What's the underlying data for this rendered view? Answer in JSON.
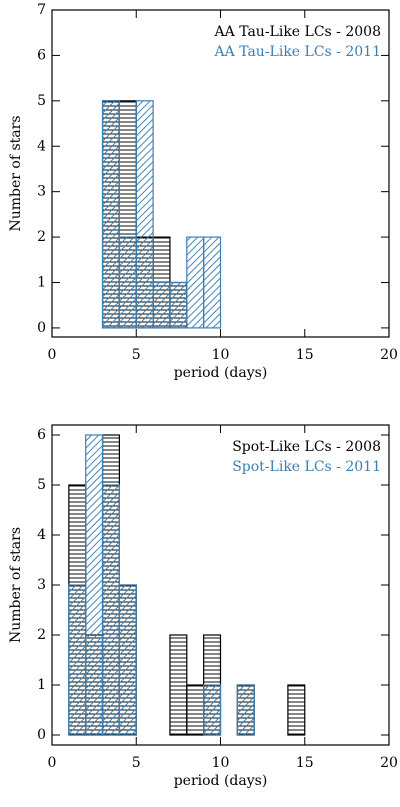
{
  "chart_data": [
    {
      "type": "histogram",
      "xlabel": "period (days)",
      "ylabel": "Number of stars",
      "bins": [
        0,
        1,
        2,
        3,
        4,
        5,
        6,
        7,
        8,
        9,
        10,
        11,
        12,
        13,
        14,
        15,
        16,
        17,
        18,
        19,
        20
      ],
      "series": [
        {
          "name": "AA Tau-Like LCs - 2008",
          "color": "#000000",
          "hatch": "horizontal",
          "values": [
            0,
            0,
            0,
            5,
            5,
            2,
            2,
            1,
            0,
            0,
            0,
            0,
            0,
            0,
            0,
            0,
            0,
            0,
            0,
            0
          ]
        },
        {
          "name": "AA Tau-Like LCs - 2011",
          "color": "#3a7fb5",
          "hatch": "diagonal",
          "values": [
            0,
            0,
            0,
            5,
            2,
            5,
            1,
            1,
            2,
            2,
            0,
            0,
            0,
            0,
            0,
            0,
            0,
            0,
            0,
            0
          ]
        }
      ],
      "xlim": [
        0,
        20
      ],
      "xticks": [
        0,
        5,
        10,
        15,
        20
      ],
      "ylim": [
        -0.2,
        7
      ],
      "yticks": [
        0,
        1,
        2,
        3,
        4,
        5,
        6,
        7
      ],
      "legend": "upper right"
    },
    {
      "type": "histogram",
      "xlabel": "period (days)",
      "ylabel": "Number of stars",
      "bins": [
        0,
        1,
        2,
        3,
        4,
        5,
        6,
        7,
        8,
        9,
        10,
        11,
        12,
        13,
        14,
        15,
        16,
        17,
        18,
        19,
        20
      ],
      "series": [
        {
          "name": "Spot-Like LCs - 2008",
          "color": "#000000",
          "hatch": "horizontal",
          "values": [
            0,
            5,
            2,
            6,
            3,
            0,
            0,
            2,
            1,
            2,
            0,
            1,
            0,
            0,
            1,
            0,
            0,
            0,
            0,
            0
          ]
        },
        {
          "name": "Spot-Like LCs - 2011",
          "color": "#3a7fb5",
          "hatch": "diagonal",
          "values": [
            0,
            3,
            6,
            5,
            3,
            0,
            0,
            0,
            0,
            1,
            0,
            1,
            0,
            0,
            0,
            0,
            0,
            0,
            0,
            0
          ]
        }
      ],
      "xlim": [
        0,
        20
      ],
      "xticks": [
        0,
        5,
        10,
        15,
        20
      ],
      "ylim": [
        -0.2,
        6.2
      ],
      "yticks": [
        0,
        1,
        2,
        3,
        4,
        5,
        6
      ],
      "legend": "upper right"
    }
  ]
}
